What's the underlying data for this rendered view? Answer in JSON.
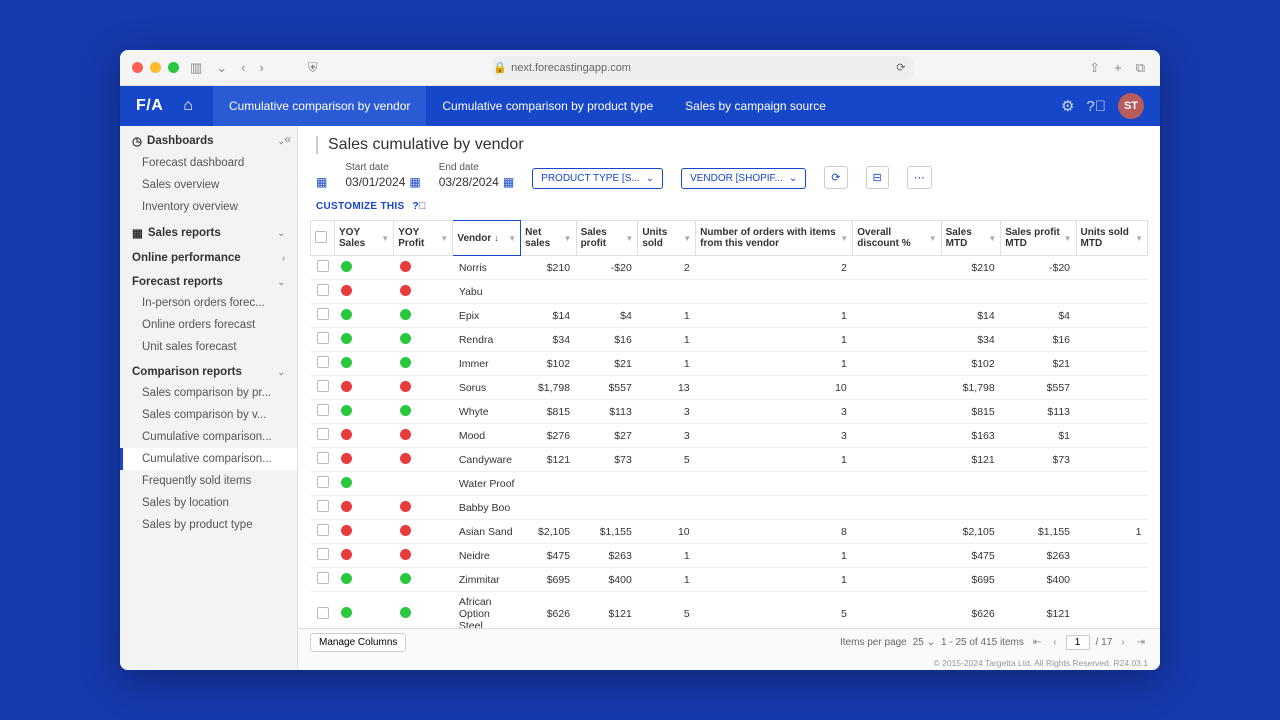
{
  "browser": {
    "url": "next.forecastingapp.com",
    "lock_icon": "🔒"
  },
  "topnav": {
    "logo": "F/A",
    "tabs": [
      {
        "label": "Cumulative comparison by vendor",
        "active": true
      },
      {
        "label": "Cumulative comparison by product type",
        "active": false
      },
      {
        "label": "Sales by campaign source",
        "active": false
      }
    ],
    "avatar": "ST"
  },
  "sidebar": {
    "sections": [
      {
        "label": "Dashboards",
        "icon": "◷",
        "chev": "⌄",
        "items": [
          "Forecast dashboard",
          "Sales overview",
          "Inventory overview"
        ]
      },
      {
        "label": "Sales reports",
        "icon": "▦",
        "chev": "⌄",
        "items": []
      },
      {
        "label": "Online performance",
        "icon": "",
        "chev": "›",
        "items": []
      },
      {
        "label": "Forecast reports",
        "icon": "",
        "chev": "⌄",
        "items": [
          "In-person orders forec...",
          "Online orders forecast",
          "Unit sales forecast"
        ]
      },
      {
        "label": "Comparison reports",
        "icon": "",
        "chev": "⌄",
        "items": [
          "Sales comparison by pr...",
          "Sales comparison by v...",
          "Cumulative comparison...",
          "Cumulative comparison...",
          "Frequently sold items",
          "Sales by location",
          "Sales by product type"
        ],
        "active_idx": 3
      }
    ]
  },
  "page": {
    "title": "Sales cumulative by vendor",
    "start_date_label": "Start date",
    "start_date": "03/01/2024",
    "end_date_label": "End date",
    "end_date": "03/28/2024",
    "filter1": "PRODUCT TYPE [S...",
    "filter2": "VENDOR [SHOPIF...",
    "customize": "CUSTOMIZE THIS"
  },
  "table": {
    "columns": [
      {
        "label": "YOY Sales",
        "key": "yoy_sales",
        "type": "dot"
      },
      {
        "label": "YOY Profit",
        "key": "yoy_profit",
        "type": "dot"
      },
      {
        "label": "Vendor",
        "key": "vendor",
        "type": "text",
        "sorted": true,
        "sort_dir": "↓"
      },
      {
        "label": "Net sales",
        "key": "net_sales",
        "type": "num"
      },
      {
        "label": "Sales profit",
        "key": "sales_profit",
        "type": "num"
      },
      {
        "label": "Units sold",
        "key": "units_sold",
        "type": "num"
      },
      {
        "label": "Number of orders with items from this vendor",
        "key": "orders",
        "type": "num"
      },
      {
        "label": "Overall discount %",
        "key": "discount",
        "type": "num"
      },
      {
        "label": "Sales MTD",
        "key": "sales_mtd",
        "type": "num"
      },
      {
        "label": "Sales profit MTD",
        "key": "profit_mtd",
        "type": "num"
      },
      {
        "label": "Units sold MTD",
        "key": "units_mtd",
        "type": "num"
      }
    ],
    "rows": [
      {
        "yoy_sales": "g",
        "yoy_profit": "r",
        "vendor": "Norris",
        "net_sales": "$210",
        "sales_profit": "-$20",
        "units_sold": "2",
        "orders": "2",
        "discount": "",
        "sales_mtd": "$210",
        "profit_mtd": "-$20",
        "units_mtd": ""
      },
      {
        "yoy_sales": "r",
        "yoy_profit": "r",
        "vendor": "Yabu",
        "net_sales": "",
        "sales_profit": "",
        "units_sold": "",
        "orders": "",
        "discount": "",
        "sales_mtd": "",
        "profit_mtd": "",
        "units_mtd": ""
      },
      {
        "yoy_sales": "g",
        "yoy_profit": "g",
        "vendor": "Epix",
        "net_sales": "$14",
        "sales_profit": "$4",
        "units_sold": "1",
        "orders": "1",
        "discount": "",
        "sales_mtd": "$14",
        "profit_mtd": "$4",
        "units_mtd": ""
      },
      {
        "yoy_sales": "g",
        "yoy_profit": "g",
        "vendor": "Rendra",
        "net_sales": "$34",
        "sales_profit": "$16",
        "units_sold": "1",
        "orders": "1",
        "discount": "",
        "sales_mtd": "$34",
        "profit_mtd": "$16",
        "units_mtd": ""
      },
      {
        "yoy_sales": "g",
        "yoy_profit": "g",
        "vendor": "Immer",
        "net_sales": "$102",
        "sales_profit": "$21",
        "units_sold": "1",
        "orders": "1",
        "discount": "",
        "sales_mtd": "$102",
        "profit_mtd": "$21",
        "units_mtd": ""
      },
      {
        "yoy_sales": "r",
        "yoy_profit": "r",
        "vendor": "Sorus",
        "net_sales": "$1,798",
        "sales_profit": "$557",
        "units_sold": "13",
        "orders": "10",
        "discount": "",
        "sales_mtd": "$1,798",
        "profit_mtd": "$557",
        "units_mtd": ""
      },
      {
        "yoy_sales": "g",
        "yoy_profit": "g",
        "vendor": "Whyte",
        "net_sales": "$815",
        "sales_profit": "$113",
        "units_sold": "3",
        "orders": "3",
        "discount": "",
        "sales_mtd": "$815",
        "profit_mtd": "$113",
        "units_mtd": ""
      },
      {
        "yoy_sales": "r",
        "yoy_profit": "r",
        "vendor": "Mood",
        "net_sales": "$276",
        "sales_profit": "$27",
        "units_sold": "3",
        "orders": "3",
        "discount": "",
        "sales_mtd": "$163",
        "profit_mtd": "$1",
        "units_mtd": ""
      },
      {
        "yoy_sales": "r",
        "yoy_profit": "r",
        "vendor": "Candyware",
        "net_sales": "$121",
        "sales_profit": "$73",
        "units_sold": "5",
        "orders": "1",
        "discount": "",
        "sales_mtd": "$121",
        "profit_mtd": "$73",
        "units_mtd": ""
      },
      {
        "yoy_sales": "g",
        "yoy_profit": "",
        "vendor": "Water Proof",
        "net_sales": "",
        "sales_profit": "",
        "units_sold": "",
        "orders": "",
        "discount": "",
        "sales_mtd": "",
        "profit_mtd": "",
        "units_mtd": ""
      },
      {
        "yoy_sales": "r",
        "yoy_profit": "r",
        "vendor": "Babby Boo",
        "net_sales": "",
        "sales_profit": "",
        "units_sold": "",
        "orders": "",
        "discount": "",
        "sales_mtd": "",
        "profit_mtd": "",
        "units_mtd": ""
      },
      {
        "yoy_sales": "r",
        "yoy_profit": "r",
        "vendor": "Asian Sand",
        "net_sales": "$2,105",
        "sales_profit": "$1,155",
        "units_sold": "10",
        "orders": "8",
        "discount": "",
        "sales_mtd": "$2,105",
        "profit_mtd": "$1,155",
        "units_mtd": "1"
      },
      {
        "yoy_sales": "r",
        "yoy_profit": "r",
        "vendor": "Neidre",
        "net_sales": "$475",
        "sales_profit": "$263",
        "units_sold": "1",
        "orders": "1",
        "discount": "",
        "sales_mtd": "$475",
        "profit_mtd": "$263",
        "units_mtd": ""
      },
      {
        "yoy_sales": "g",
        "yoy_profit": "g",
        "vendor": "Zimmitar",
        "net_sales": "$695",
        "sales_profit": "$400",
        "units_sold": "1",
        "orders": "1",
        "discount": "",
        "sales_mtd": "$695",
        "profit_mtd": "$400",
        "units_mtd": ""
      },
      {
        "yoy_sales": "g",
        "yoy_profit": "g",
        "vendor": "African Option Steel",
        "net_sales": "$626",
        "sales_profit": "$121",
        "units_sold": "5",
        "orders": "5",
        "discount": "",
        "sales_mtd": "$626",
        "profit_mtd": "$121",
        "units_mtd": ""
      }
    ]
  },
  "footer": {
    "manage": "Manage Columns",
    "items_per_page_label": "Items per page",
    "items_per_page": "25",
    "range": "1 - 25 of 415 items",
    "page": "1",
    "total_pages": "17",
    "copyright": "© 2015-2024 Targetta Ltd. All Rights Reserved. R24.03.1"
  },
  "colors": {
    "page_bg": "#1639ac",
    "nav_bg": "#1647c9",
    "tab_active_bg": "#2a5ad4",
    "accent": "#1647c9",
    "dot_green": "#2ac840",
    "dot_red": "#e83b3b"
  }
}
